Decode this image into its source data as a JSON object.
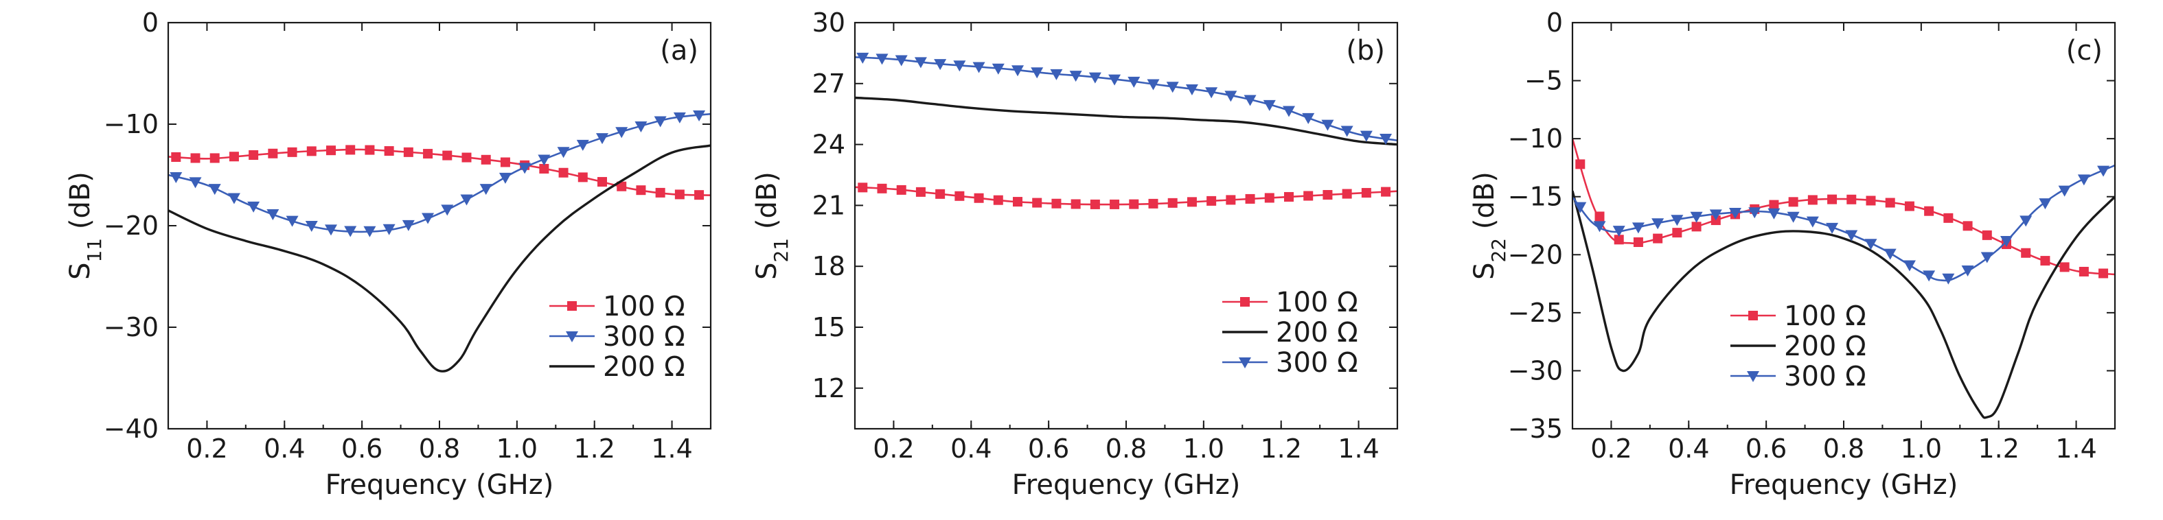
{
  "chart_data": [
    {
      "type": "line",
      "panel_label": "(a)",
      "xlabel": "Frequency (GHz)",
      "ylabel_main": "S",
      "ylabel_sub": "11",
      "ylabel_unit": " (dB)",
      "xlim": [
        0.1,
        1.5
      ],
      "ylim": [
        -40,
        0
      ],
      "xticks": [
        0.2,
        0.4,
        0.6,
        0.8,
        1.0,
        1.2,
        1.4
      ],
      "xtick_labels": [
        "0.2",
        "0.4",
        "0.6",
        "0.8",
        "1.0",
        "1.2",
        "1.4"
      ],
      "yticks": [
        0,
        -10,
        -20,
        -30,
        -40
      ],
      "ytick_labels": [
        "0",
        "−10",
        "−20",
        "−30",
        "−40"
      ],
      "legend_position": "bottom-right",
      "series": [
        {
          "name": "100 Ω",
          "color": "#e8304a",
          "marker": "square",
          "x": [
            0.1,
            0.2,
            0.3,
            0.4,
            0.5,
            0.6,
            0.7,
            0.8,
            0.9,
            1.0,
            1.1,
            1.2,
            1.3,
            1.4,
            1.5
          ],
          "y": [
            -13.2,
            -13.4,
            -13.1,
            -12.8,
            -12.6,
            -12.5,
            -12.7,
            -13.0,
            -13.4,
            -13.9,
            -14.6,
            -15.5,
            -16.4,
            -16.9,
            -17.0
          ]
        },
        {
          "name": "300 Ω",
          "color": "#3a5fb8",
          "marker": "triangle-down",
          "x": [
            0.1,
            0.2,
            0.3,
            0.4,
            0.5,
            0.6,
            0.7,
            0.8,
            0.9,
            1.0,
            1.1,
            1.2,
            1.3,
            1.4,
            1.5
          ],
          "y": [
            -15.0,
            -16.0,
            -17.8,
            -19.3,
            -20.3,
            -20.6,
            -20.2,
            -18.8,
            -16.8,
            -14.6,
            -13.0,
            -11.6,
            -10.4,
            -9.4,
            -9.0
          ]
        },
        {
          "name": "200 Ω",
          "color": "#1a1a1a",
          "marker": "none",
          "x": [
            0.1,
            0.2,
            0.3,
            0.4,
            0.5,
            0.6,
            0.7,
            0.75,
            0.8,
            0.85,
            0.9,
            1.0,
            1.1,
            1.2,
            1.3,
            1.4,
            1.5
          ],
          "y": [
            -18.5,
            -20.3,
            -21.5,
            -22.5,
            -23.8,
            -26.0,
            -29.5,
            -32.3,
            -34.3,
            -33.3,
            -30.0,
            -24.3,
            -20.2,
            -17.3,
            -14.9,
            -12.8,
            -12.1
          ]
        }
      ]
    },
    {
      "type": "line",
      "panel_label": "(b)",
      "xlabel": "Frequency (GHz)",
      "ylabel_main": "S",
      "ylabel_sub": "21",
      "ylabel_unit": " (dB)",
      "xlim": [
        0.1,
        1.5
      ],
      "ylim": [
        10,
        30
      ],
      "xticks": [
        0.2,
        0.4,
        0.6,
        0.8,
        1.0,
        1.2,
        1.4
      ],
      "xtick_labels": [
        "0.2",
        "0.4",
        "0.6",
        "0.8",
        "1.0",
        "1.2",
        "1.4"
      ],
      "yticks": [
        12,
        15,
        18,
        21,
        24,
        27,
        30
      ],
      "ytick_labels": [
        "12",
        "15",
        "18",
        "21",
        "24",
        "27",
        "30"
      ],
      "legend_position": "bottom-right",
      "series": [
        {
          "name": "100 Ω",
          "color": "#e8304a",
          "marker": "square",
          "x": [
            0.1,
            0.2,
            0.3,
            0.4,
            0.5,
            0.6,
            0.7,
            0.8,
            0.9,
            1.0,
            1.1,
            1.2,
            1.3,
            1.4,
            1.5
          ],
          "y": [
            21.9,
            21.8,
            21.6,
            21.4,
            21.2,
            21.1,
            21.05,
            21.05,
            21.1,
            21.2,
            21.3,
            21.4,
            21.5,
            21.6,
            21.7
          ]
        },
        {
          "name": "200 Ω",
          "color": "#1a1a1a",
          "marker": "none",
          "x": [
            0.1,
            0.2,
            0.3,
            0.4,
            0.5,
            0.6,
            0.7,
            0.8,
            0.9,
            1.0,
            1.1,
            1.2,
            1.3,
            1.4,
            1.5
          ],
          "y": [
            26.3,
            26.2,
            26.0,
            25.8,
            25.65,
            25.55,
            25.45,
            25.35,
            25.3,
            25.2,
            25.1,
            24.85,
            24.5,
            24.15,
            24.0
          ]
        },
        {
          "name": "300 Ω",
          "color": "#3a5fb8",
          "marker": "triangle-down",
          "x": [
            0.1,
            0.2,
            0.3,
            0.4,
            0.5,
            0.6,
            0.7,
            0.8,
            0.9,
            1.0,
            1.1,
            1.2,
            1.3,
            1.4,
            1.5
          ],
          "y": [
            28.3,
            28.2,
            28.0,
            27.85,
            27.7,
            27.5,
            27.35,
            27.15,
            26.9,
            26.65,
            26.3,
            25.8,
            25.1,
            24.5,
            24.2
          ]
        }
      ]
    },
    {
      "type": "line",
      "panel_label": "(c)",
      "xlabel": "Frequency (GHz)",
      "ylabel_main": "S",
      "ylabel_sub": "22",
      "ylabel_unit": " (dB)",
      "xlim": [
        0.1,
        1.5
      ],
      "ylim": [
        -35,
        0
      ],
      "xticks": [
        0.2,
        0.4,
        0.6,
        0.8,
        1.0,
        1.2,
        1.4
      ],
      "xtick_labels": [
        "0.2",
        "0.4",
        "0.6",
        "0.8",
        "1.0",
        "1.2",
        "1.4"
      ],
      "yticks": [
        0,
        -5,
        -10,
        -15,
        -20,
        -25,
        -30,
        -35
      ],
      "ytick_labels": [
        "0",
        "−5",
        "−10",
        "−15",
        "−20",
        "−25",
        "−30",
        "−35"
      ],
      "legend_position": "bottom-center",
      "series": [
        {
          "name": "100 Ω",
          "color": "#e8304a",
          "marker": "square",
          "x": [
            0.1,
            0.15,
            0.2,
            0.25,
            0.3,
            0.4,
            0.5,
            0.6,
            0.7,
            0.8,
            0.9,
            1.0,
            1.1,
            1.2,
            1.3,
            1.4,
            1.5
          ],
          "y": [
            -10.0,
            -15.5,
            -18.5,
            -19.0,
            -18.8,
            -17.8,
            -16.7,
            -15.8,
            -15.3,
            -15.2,
            -15.4,
            -16.0,
            -17.2,
            -18.8,
            -20.3,
            -21.4,
            -21.7
          ]
        },
        {
          "name": "200 Ω",
          "color": "#1a1a1a",
          "marker": "none",
          "x": [
            0.1,
            0.15,
            0.2,
            0.23,
            0.27,
            0.3,
            0.4,
            0.5,
            0.6,
            0.7,
            0.8,
            0.9,
            1.0,
            1.05,
            1.1,
            1.15,
            1.17,
            1.2,
            1.25,
            1.3,
            1.4,
            1.5
          ],
          "y": [
            -14.5,
            -21.0,
            -28.0,
            -30.0,
            -28.5,
            -25.5,
            -21.5,
            -19.3,
            -18.2,
            -18.0,
            -18.6,
            -20.3,
            -23.5,
            -26.5,
            -30.5,
            -33.5,
            -34.0,
            -33.0,
            -28.5,
            -24.0,
            -18.5,
            -15.0
          ]
        },
        {
          "name": "300 Ω",
          "color": "#3a5fb8",
          "marker": "triangle-down",
          "x": [
            0.1,
            0.15,
            0.2,
            0.25,
            0.3,
            0.4,
            0.5,
            0.6,
            0.7,
            0.8,
            0.9,
            1.0,
            1.05,
            1.1,
            1.2,
            1.3,
            1.4,
            1.5
          ],
          "y": [
            -15.0,
            -17.2,
            -18.0,
            -17.8,
            -17.4,
            -16.8,
            -16.4,
            -16.3,
            -16.9,
            -18.0,
            -19.5,
            -21.5,
            -22.2,
            -21.8,
            -19.5,
            -16.0,
            -13.8,
            -12.3
          ]
        }
      ]
    }
  ]
}
